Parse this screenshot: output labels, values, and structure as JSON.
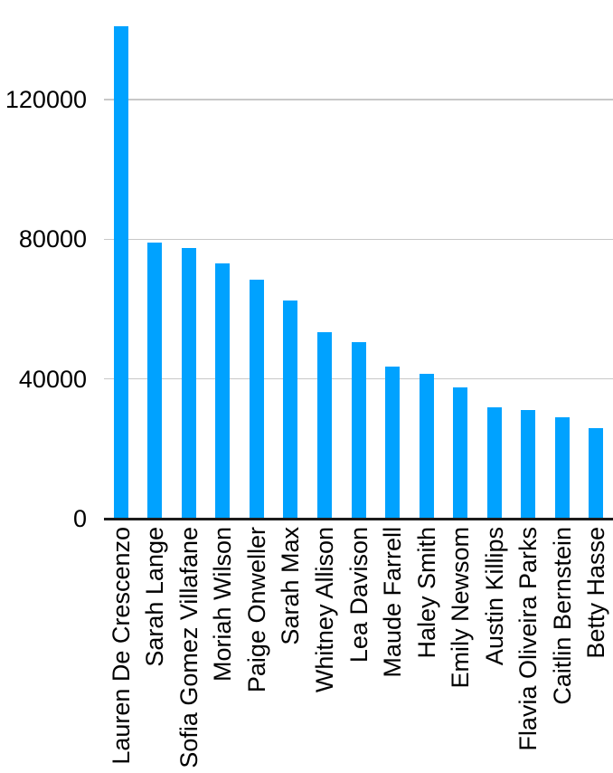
{
  "chart_data": {
    "type": "bar",
    "title": "",
    "xlabel": "",
    "ylabel": "",
    "categories": [
      "Lauren De Crescenzo",
      "Sarah Lange",
      "Sofia Gomez Villafane",
      "Moriah Wilson",
      "Paige Onweller",
      "Sarah Max",
      "Whitney Allison",
      "Lea Davison",
      "Maude Farrell",
      "Haley Smith",
      "Emily Newsom",
      "Austin Killips",
      "Flavia Oliveira Parks",
      "Caitlin Bernstein",
      "Betty Hasse"
    ],
    "values": [
      141000,
      79000,
      77500,
      73000,
      68500,
      62500,
      53500,
      50500,
      43500,
      41500,
      37500,
      32000,
      31000,
      29000,
      26000
    ],
    "ylim": [
      0,
      148000
    ],
    "y_ticks": [
      0,
      40000,
      80000,
      120000
    ],
    "y_tick_labels": [
      "0",
      "40000",
      "80000",
      "120000"
    ],
    "grid": "horizontal",
    "legend_position": "none",
    "bar_color": "#00a2ff",
    "gridline_color": "#c8c8c8",
    "axis_line_color": "#1c1c1c",
    "text_color": "#000000"
  }
}
